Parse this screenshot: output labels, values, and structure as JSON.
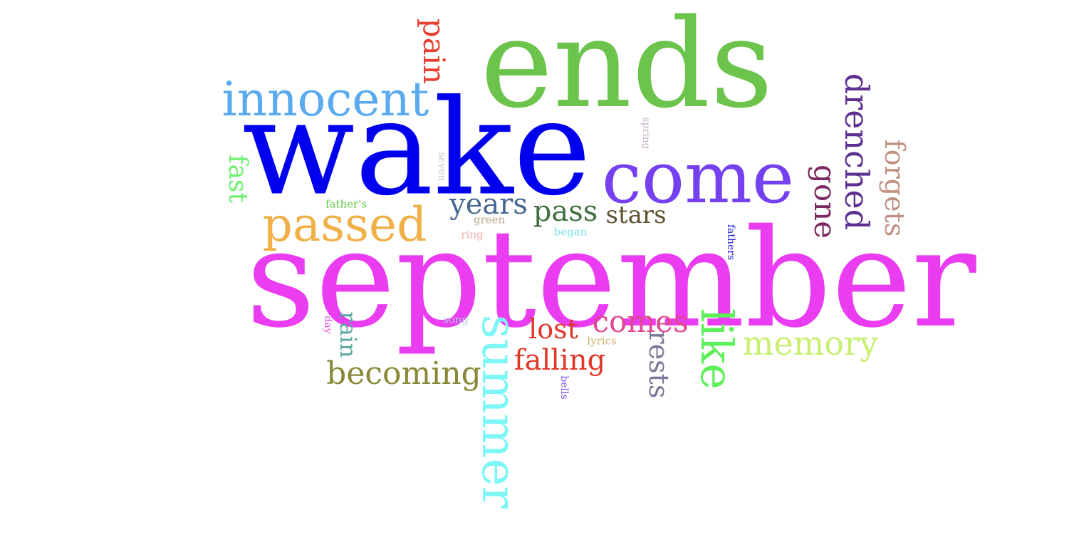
{
  "words": [
    {
      "text": "september",
      "color": "#ea3cf0"
    },
    {
      "text": "wake",
      "color": "#0000ee"
    },
    {
      "text": "ends",
      "color": "#6cc44c"
    },
    {
      "text": "come",
      "color": "#7440f0"
    },
    {
      "text": "innocent",
      "color": "#5aaaf0"
    },
    {
      "text": "summer",
      "color": "#7cf6f6"
    },
    {
      "text": "passed",
      "color": "#f0b048"
    },
    {
      "text": "like",
      "color": "#5ef05a"
    },
    {
      "text": "drenched",
      "color": "#5e3090"
    },
    {
      "text": "forgets",
      "color": "#c09080"
    },
    {
      "text": "gone",
      "color": "#7a2a60"
    },
    {
      "text": "memory",
      "color": "#c8f070"
    },
    {
      "text": "becoming",
      "color": "#888838"
    },
    {
      "text": "comes",
      "color": "#e04890"
    },
    {
      "text": "pain",
      "color": "#e84030"
    },
    {
      "text": "years",
      "color": "#486890"
    },
    {
      "text": "pass",
      "color": "#407040"
    },
    {
      "text": "stars",
      "color": "#605030"
    },
    {
      "text": "lost",
      "color": "#e03828"
    },
    {
      "text": "falling",
      "color": "#e03828"
    },
    {
      "text": "rests",
      "color": "#787898"
    },
    {
      "text": "fast",
      "color": "#70f070"
    },
    {
      "text": "rain",
      "color": "#58a8a0"
    },
    {
      "text": "father's",
      "color": "#60c848"
    },
    {
      "text": "green",
      "color": "#c0a890"
    },
    {
      "text": "ring",
      "color": "#f0b0b0"
    },
    {
      "text": "began",
      "color": "#80e0f0"
    },
    {
      "text": "song",
      "color": "#b0c8e0"
    },
    {
      "text": "lyrics",
      "color": "#d0b070"
    },
    {
      "text": "bells",
      "color": "#8050e8"
    },
    {
      "text": "day",
      "color": "#e050e0"
    },
    {
      "text": "seven",
      "color": "#c8c8c8"
    },
    {
      "text": "spring",
      "color": "#c8b8c8"
    },
    {
      "text": "fathers",
      "color": "#2020e0"
    }
  ]
}
